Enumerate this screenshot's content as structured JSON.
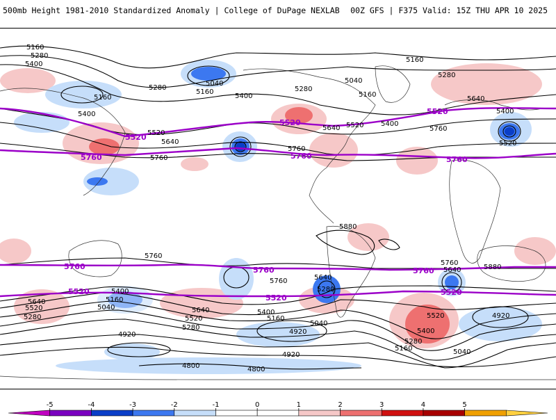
{
  "header": {
    "left_title": "500mb Height 1981-2010 Standardized Anomaly | College of DuPage NEXLAB",
    "right_title": "00Z GFS | F375 Valid: 15Z THU APR 10 2025"
  },
  "contour_labels": {
    "c5160_a": "5160",
    "c5280_a": "5280",
    "c5400_a": "5400",
    "c5160_b": "5160",
    "c5040_a": "5040",
    "c5160_c": "5160",
    "c5280_b": "5280",
    "c5400_b": "5400",
    "c5280_c": "5280",
    "c5040_b": "5040",
    "c5160_d": "5160",
    "c5160_e": "5160",
    "c5280_d": "5280",
    "c5400_c": "5400",
    "c5520_a": "5520",
    "c5640_a": "5640",
    "c5760_a": "5760",
    "c5400_d": "5400",
    "c5640_b": "5640",
    "c5520_b": "5520",
    "c5400_e": "5400",
    "c5760_b": "5760",
    "c5640_c": "5640",
    "c5520_c": "5520",
    "c5760_c": "5760",
    "c5880_a": "5880",
    "c5760_d": "5760",
    "c5760_e": "5760",
    "c5640_d": "5640",
    "c5880_b": "5880",
    "c5400_f": "5400",
    "c5160_f": "5160",
    "c5640_e": "5640",
    "c5520_d": "5520",
    "c5040_c": "5040",
    "c5280_e": "5280",
    "c5640_f": "5640",
    "c5520_e": "5520",
    "c5280_f": "5280",
    "c5760_f": "5760",
    "c5640_g": "5640",
    "c5280_g": "5280",
    "c5400_g": "5400",
    "c5160_g": "5160",
    "c5040_d": "5040",
    "c4920_a": "4920",
    "c4920_b": "4920",
    "c4920_c": "4920",
    "c4800_a": "4800",
    "c4800_b": "4800",
    "c5520_f": "5520",
    "c5400_h": "5400",
    "c5280_h": "5280",
    "c5160_h": "5160",
    "c5040_e": "5040",
    "c4920_d": "4920"
  },
  "purple_labels": {
    "p5520_a": "5520",
    "p5520_b": "5520",
    "p5520_c": "5520",
    "p5760_a": "5760",
    "p5760_b": "5760",
    "p5760_c": "5760",
    "p5760_d": "5760",
    "p5760_e": "5760",
    "p5760_f": "5760",
    "p5520_d": "5520",
    "p5520_e": "5520",
    "p5520_f": "5520"
  },
  "colorbar": {
    "ticks": [
      "-5",
      "-4",
      "-3",
      "-2",
      "-1",
      "0",
      "1",
      "2",
      "3",
      "4",
      "5"
    ],
    "colors": [
      "#c000c0",
      "#7a00c0",
      "#0a3ec8",
      "#3c78f0",
      "#c6defa",
      "#ffffff",
      "#ffffff",
      "#f6c8c8",
      "#ee7070",
      "#d01010",
      "#a80000",
      "#f0a000",
      "#ffd040"
    ]
  }
}
